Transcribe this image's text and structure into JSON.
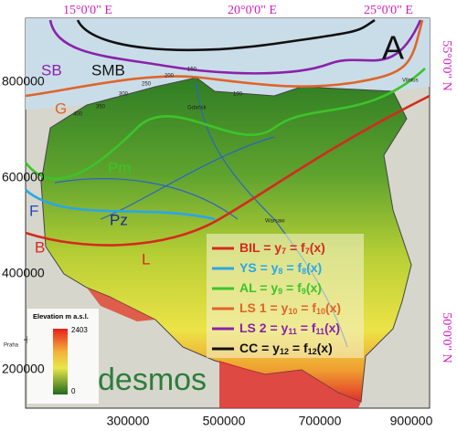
{
  "axes": {
    "top": [
      "15°0'0\" E",
      "20°0'0\" E",
      "25°0'0\" E"
    ],
    "right": [
      "55°0'0\" N",
      "50°0'0\" N"
    ],
    "left": [
      800000,
      600000,
      400000,
      200000
    ],
    "bottom": [
      300000,
      500000,
      700000,
      900000
    ]
  },
  "panel_label": "A",
  "curve_labels": [
    "SB",
    "SMB",
    "G",
    "Pm",
    "F",
    "Pz",
    "B",
    "L"
  ],
  "places": [
    "Gdańsk",
    "Vilnius",
    "Warsaw",
    "Praha"
  ],
  "contours": [
    "400",
    "350",
    "300",
    "250",
    "200",
    "150",
    "100"
  ],
  "elevation_legend": {
    "title": "Elevation m a.s.l.",
    "max": 2403,
    "min": 0
  },
  "watermark": "desmos",
  "legend": [
    {
      "parts": [
        "BIL = y",
        "7",
        " = f",
        "7",
        "(x)"
      ],
      "color": "#d42a1e"
    },
    {
      "parts": [
        "YS = y",
        "8",
        " = f",
        "8",
        "(x)"
      ],
      "color": "#2ba6e8"
    },
    {
      "parts": [
        "AL = y",
        "9",
        " = f",
        "9",
        "(x)"
      ],
      "color": "#3cc42a"
    },
    {
      "parts": [
        "LS 1 = y",
        "10",
        " = f",
        "10",
        "(x)"
      ],
      "color": "#e0642a"
    },
    {
      "parts": [
        "LS 2 = y",
        "11",
        " = f",
        "11",
        "(x)"
      ],
      "color": "#8a22a8"
    },
    {
      "parts": [
        "CC = y",
        "12",
        " = f",
        "12",
        "(x)"
      ],
      "color": "#111111"
    }
  ]
}
